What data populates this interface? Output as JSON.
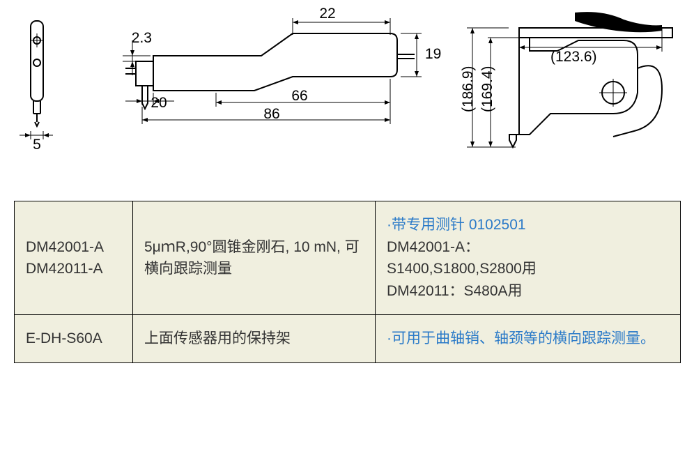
{
  "diagram": {
    "front": {
      "width_label": "5"
    },
    "side": {
      "top_small": "22",
      "left_thickness": "2.3",
      "right_height": "19",
      "bottom_short": "20",
      "bottom_mid": "66",
      "bottom_full": "86"
    },
    "mount": {
      "h1": "(186.9)",
      "h2": "(169.4)",
      "w": "(123.6)"
    },
    "style": {
      "stroke": "#000000",
      "stroke_width": 2,
      "label_fontsize": 21
    }
  },
  "table": {
    "rows": [
      {
        "models": [
          "DM42001-A",
          "DM42011-A"
        ],
        "spec": "5μｍR,90°圆锥金刚石, 10 mN, 可横向跟踪测量",
        "notes_lead": "·带专用测针 0102501",
        "notes_rest": [
          "DM42001-A：",
          "S1400,S1800,S2800用",
          "DM42011：S480A用"
        ]
      },
      {
        "models": [
          "E-DH-S60A"
        ],
        "spec": "上面传感器用的保持架",
        "notes_lead": "·可用于曲轴销、轴颈等的横向跟踪测量。",
        "notes_rest": []
      }
    ],
    "style": {
      "cell_bg": "#f0efdf",
      "border": "#000000",
      "text_color": "#333333",
      "accent_color": "#2a7ac8",
      "fontsize": 21
    }
  }
}
